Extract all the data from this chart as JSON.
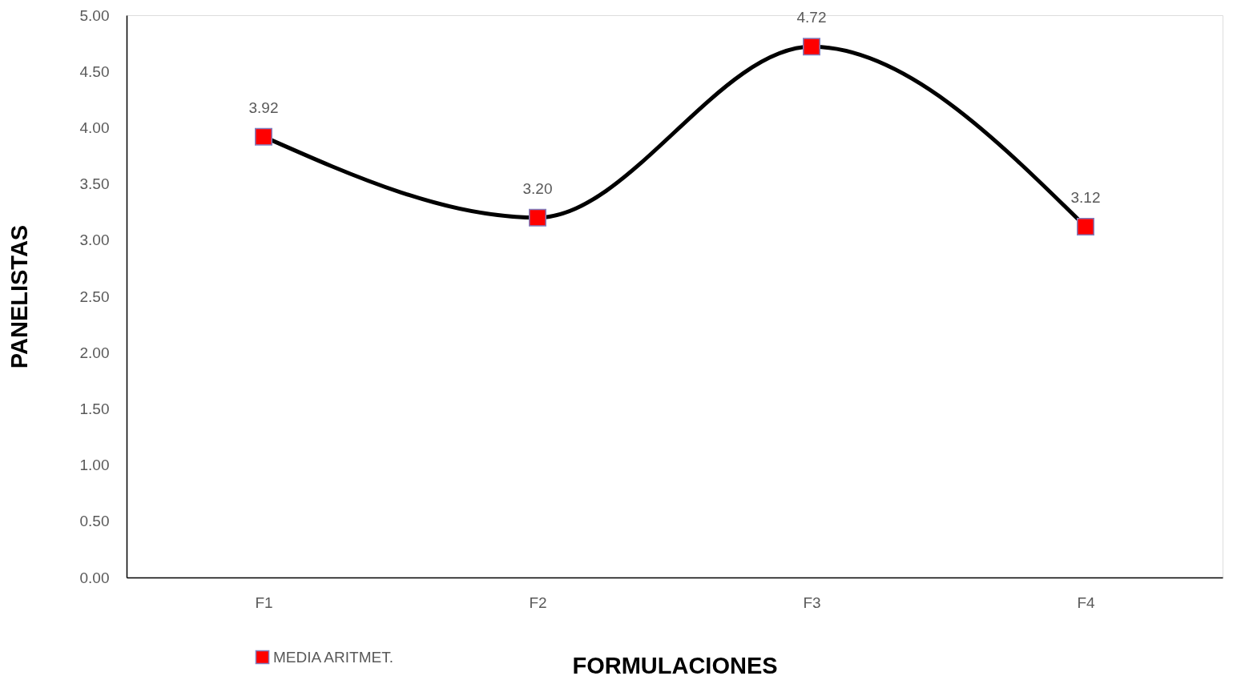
{
  "chart_data": {
    "type": "line",
    "xlabel": "FORMULACIONES",
    "ylabel": "PANELISTAS",
    "categories": [
      "F1",
      "F2",
      "F3",
      "F4"
    ],
    "series": [
      {
        "name": "MEDIA ARITMET.",
        "color": "#ff0000",
        "values": [
          3.92,
          3.2,
          4.72,
          3.12
        ],
        "value_labels": [
          "3.92",
          "3.20",
          "4.72",
          "3.12"
        ]
      }
    ],
    "ylim": [
      0,
      5
    ],
    "yticks": [
      {
        "value": 0,
        "label": "0.00"
      },
      {
        "value": 0.5,
        "label": "0.50"
      },
      {
        "value": 1,
        "label": "1.00"
      },
      {
        "value": 1.5,
        "label": "1.50"
      },
      {
        "value": 2,
        "label": "2.00"
      },
      {
        "value": 2.5,
        "label": "2.50"
      },
      {
        "value": 3,
        "label": "3.00"
      },
      {
        "value": 3.5,
        "label": "3.50"
      },
      {
        "value": 4,
        "label": "4.00"
      },
      {
        "value": 4.5,
        "label": "4.50"
      },
      {
        "value": 5,
        "label": "5.00"
      }
    ],
    "marker": "square",
    "line_style": "solid",
    "grid": false,
    "legend": "bottom left"
  }
}
